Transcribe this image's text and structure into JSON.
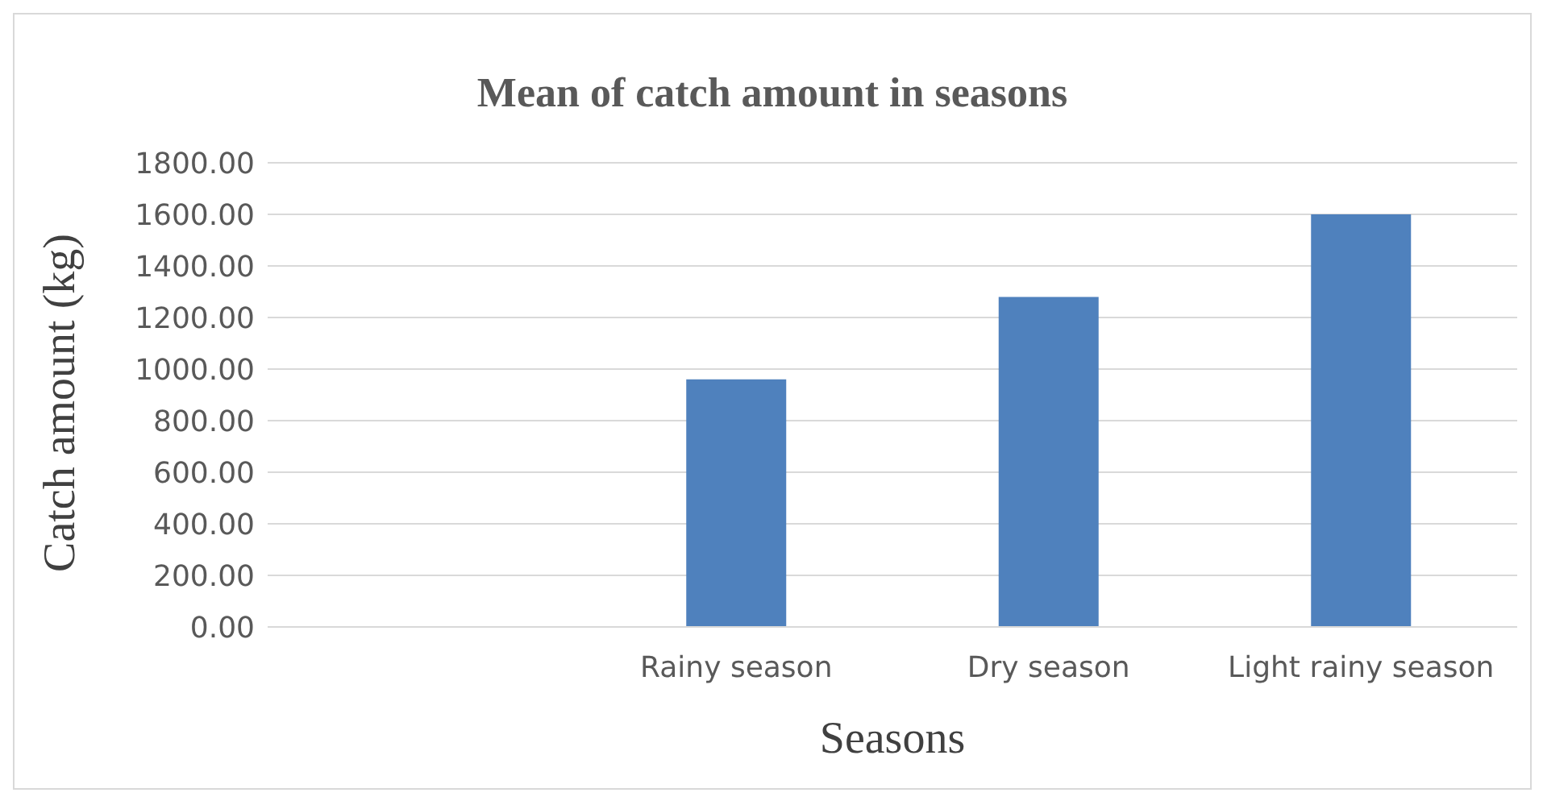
{
  "chart_data": {
    "type": "bar",
    "title": "Mean of catch amount in seasons",
    "xlabel": "Seasons",
    "ylabel": "Catch amount (kg)",
    "categories": [
      null,
      "Rainy season",
      "Dry season",
      "Light rainy season"
    ],
    "values": [
      null,
      960,
      1280,
      1600
    ],
    "color": "#4f81bd",
    "ylim": [
      0,
      1800
    ],
    "yticks": [
      {
        "value": 0,
        "label": "0.00"
      },
      {
        "value": 200,
        "label": "200.00"
      },
      {
        "value": 400,
        "label": "400.00"
      },
      {
        "value": 600,
        "label": "600.00"
      },
      {
        "value": 800,
        "label": "800.00"
      },
      {
        "value": 1000,
        "label": "1000.00"
      },
      {
        "value": 1200,
        "label": "1200.00"
      },
      {
        "value": 1400,
        "label": "1400.00"
      },
      {
        "value": 1600,
        "label": "1600.00"
      },
      {
        "value": 1800,
        "label": "1800.00"
      }
    ],
    "grid": "y"
  }
}
